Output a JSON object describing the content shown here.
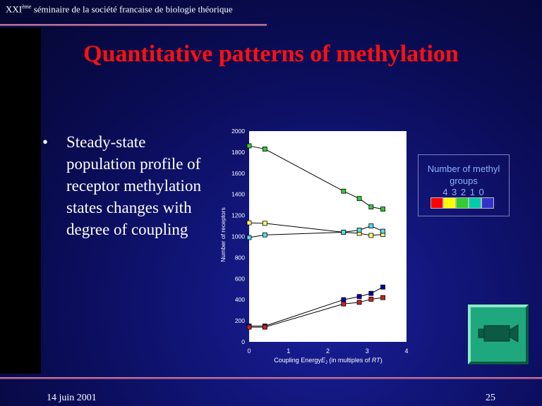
{
  "header": {
    "conference_prefix": "XXI",
    "conference_sup": "ème",
    "conference_rest": " séminaire de la société francaise de biologie théorique"
  },
  "slide": {
    "title": "Quantitative patterns of methylation",
    "bullet_symbol": "•",
    "bullet_text": "Steady-state population profile of receptor methylation states changes with degree of coupling"
  },
  "legend": {
    "title": "Number of methyl groups",
    "numbers": "4 3 2 1 0",
    "colors": [
      "#ff0000",
      "#ffff00",
      "#33cc33",
      "#00ccaa",
      "#3333cc"
    ]
  },
  "footer": {
    "date": "14 juin 2001",
    "page": "25"
  },
  "video_button": {
    "icon": "video-camera-icon"
  },
  "chart_data": {
    "type": "line",
    "xlabel": "Coupling Energy E_J (in multiples of RT)",
    "xlabel_main": "Coupling Energy",
    "xlabel_var": "E",
    "xlabel_sub": "J",
    "xlabel_tail": " (in multiples of ",
    "xlabel_unit": "RT",
    "xlabel_close": ")",
    "ylabel": "Number of receptors",
    "xlim": [
      0,
      4
    ],
    "ylim": [
      0,
      2000
    ],
    "xticks": [
      0,
      1,
      2,
      3,
      4
    ],
    "yticks": [
      0,
      200,
      400,
      600,
      800,
      1000,
      1200,
      1400,
      1600,
      1800,
      2000
    ],
    "x": [
      0,
      0.4,
      2.4,
      2.8,
      3.1,
      3.4
    ],
    "series": [
      {
        "color": "#33cc33",
        "values": [
          1860,
          1830,
          1430,
          1360,
          1280,
          1260
        ]
      },
      {
        "color": "#ffff66",
        "values": [
          1130,
          1125,
          1040,
          1030,
          1010,
          1020
        ]
      },
      {
        "color": "#55ddee",
        "values": [
          990,
          1015,
          1040,
          1060,
          1100,
          1050
        ]
      },
      {
        "color": "#0000aa",
        "values": [
          150,
          150,
          400,
          430,
          460,
          520
        ]
      },
      {
        "color": "#cc2222",
        "values": [
          140,
          140,
          360,
          375,
          405,
          420
        ]
      }
    ]
  }
}
